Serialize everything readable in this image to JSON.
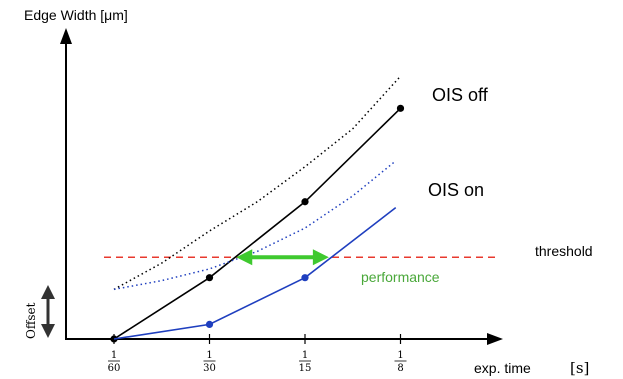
{
  "chart_data": {
    "type": "line",
    "title": "",
    "ylabel": "Edge Width [μm]",
    "xlabel": "exp. time",
    "xunit": "[s]",
    "x_tick_labels": [
      {
        "num": "1",
        "den": "60"
      },
      {
        "num": "1",
        "den": "30"
      },
      {
        "num": "1",
        "den": "15"
      },
      {
        "num": "1",
        "den": "8"
      }
    ],
    "x": [
      "1/60",
      "1/30",
      "1/15",
      "1/8"
    ],
    "ylim": [
      0,
      10
    ],
    "series": [
      {
        "name": "OIS off",
        "style": "solid",
        "color": "#000000",
        "markers": true,
        "points": [
          [
            0,
            0.0
          ],
          [
            1,
            2.1
          ],
          [
            2,
            4.7
          ],
          [
            3,
            7.9
          ]
        ]
      },
      {
        "name": "",
        "style": "dotted",
        "color": "#000000",
        "markers": false,
        "points": [
          [
            0.0,
            1.7
          ],
          [
            0.5,
            2.6
          ],
          [
            1.0,
            3.7
          ],
          [
            1.5,
            4.7
          ],
          [
            2.0,
            5.9
          ],
          [
            2.5,
            7.2
          ],
          [
            3.0,
            9.0
          ]
        ]
      },
      {
        "name": "OIS on",
        "style": "solid",
        "color": "#1f3fbf",
        "markers": true,
        "points": [
          [
            0,
            0.0
          ],
          [
            1,
            0.5
          ],
          [
            2,
            2.1
          ],
          [
            2.95,
            4.5
          ]
        ]
      },
      {
        "name": "",
        "style": "dotted",
        "color": "#1f3fbf",
        "markers": false,
        "points": [
          [
            0.0,
            1.7
          ],
          [
            0.5,
            2.0
          ],
          [
            1.0,
            2.4
          ],
          [
            1.5,
            3.0
          ],
          [
            2.0,
            3.8
          ],
          [
            2.5,
            4.9
          ],
          [
            2.95,
            6.1
          ]
        ]
      }
    ],
    "threshold": {
      "label": "threshold",
      "y": 2.8,
      "color": "#e8392e"
    },
    "performance": {
      "label": "performance",
      "x_from": 1.28,
      "x_to": 2.25,
      "y": 2.8,
      "color": "#3fc92f"
    },
    "offset": {
      "label": "Offset"
    },
    "grid": false
  }
}
